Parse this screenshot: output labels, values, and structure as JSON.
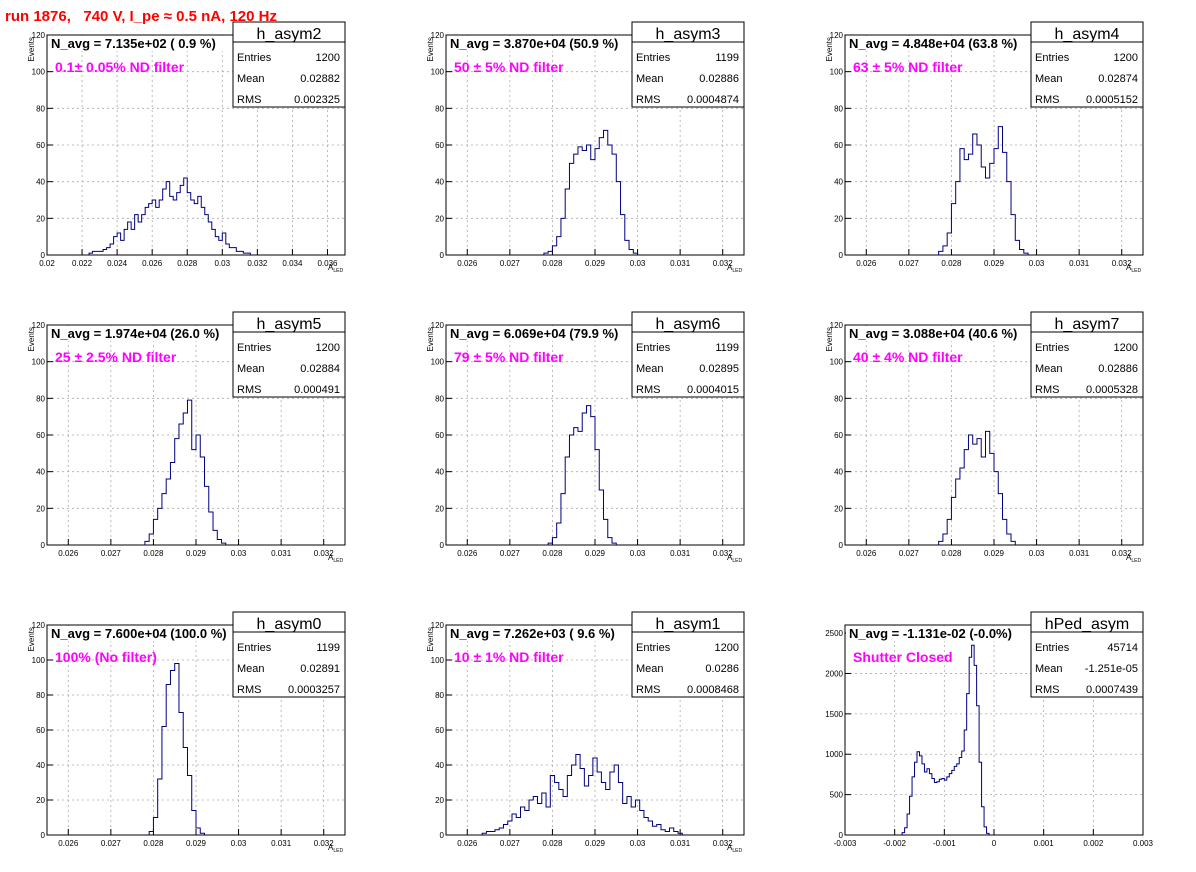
{
  "page_title": "run 1876,   740 V, I_pe ≈ 0.5 nA, 120 Hz",
  "colors": {
    "title": "#ff0000",
    "hist": "#000080",
    "annotation": "#ff00ff",
    "grid": "#aaaaaa"
  },
  "chart_data": [
    {
      "type": "bar",
      "name": "h_asym2",
      "avg_label": "N_avg = 7.135e+02 ( 0.9 %)",
      "annotation": "0.1± 0.05% ND filter",
      "stats": {
        "entries": "1200",
        "mean": "0.02882",
        "rms": "0.002325"
      },
      "ylabel": "Events",
      "xlabel": "A",
      "xlabel_sub": "LED",
      "xlim": [
        0.02,
        0.037
      ],
      "ylim": [
        0,
        120
      ],
      "xticks": [
        0.02,
        0.022,
        0.024,
        0.026,
        0.028,
        0.03,
        0.032,
        0.034,
        0.036
      ],
      "xtick_labels": [
        "0.02",
        "0.022",
        "0.024",
        "0.026",
        "0.028",
        "0.03",
        "0.032",
        "0.034",
        "0.036"
      ],
      "yticks": [
        0,
        20,
        40,
        60,
        80,
        100,
        120
      ],
      "ytick_labels": [
        "0",
        "20",
        "40",
        "60",
        "80",
        "100",
        "120"
      ],
      "bin_start": 0.0224,
      "bin_width": 0.0002,
      "values": [
        1,
        2,
        2,
        2,
        3,
        4,
        6,
        10,
        12,
        8,
        14,
        18,
        14,
        22,
        18,
        22,
        26,
        28,
        30,
        26,
        30,
        36,
        40,
        32,
        30,
        34,
        38,
        42,
        34,
        30,
        28,
        32,
        26,
        22,
        18,
        14,
        10,
        8,
        12,
        6,
        4,
        4,
        2,
        2,
        1,
        1
      ]
    },
    {
      "type": "bar",
      "name": "h_asym3",
      "avg_label": "N_avg = 3.870e+04 (50.9 %)",
      "annotation": "50 ± 5% ND filter",
      "stats": {
        "entries": "1199",
        "mean": "0.02886",
        "rms": "0.0004874"
      },
      "ylabel": "Events",
      "xlabel": "A",
      "xlabel_sub": "LED",
      "xlim": [
        0.0255,
        0.0325
      ],
      "ylim": [
        0,
        120
      ],
      "xticks": [
        0.026,
        0.027,
        0.028,
        0.029,
        0.03,
        0.031,
        0.032
      ],
      "xtick_labels": [
        "0.026",
        "0.027",
        "0.028",
        "0.029",
        "0.03",
        "0.031",
        "0.032"
      ],
      "yticks": [
        0,
        20,
        40,
        60,
        80,
        100,
        120
      ],
      "ytick_labels": [
        "0",
        "20",
        "40",
        "60",
        "80",
        "100",
        "120"
      ],
      "bin_start": 0.0278,
      "bin_width": 0.0001,
      "values": [
        1,
        2,
        5,
        10,
        20,
        36,
        50,
        55,
        59,
        57,
        60,
        52,
        58,
        64,
        68,
        60,
        55,
        40,
        22,
        8,
        3,
        1
      ]
    },
    {
      "type": "bar",
      "name": "h_asym4",
      "avg_label": "N_avg = 4.848e+04 (63.8 %)",
      "annotation": "63 ± 5% ND filter",
      "stats": {
        "entries": "1200",
        "mean": "0.02874",
        "rms": "0.0005152"
      },
      "ylabel": "Events",
      "xlabel": "A",
      "xlabel_sub": "LED",
      "xlim": [
        0.0255,
        0.0325
      ],
      "ylim": [
        0,
        120
      ],
      "xticks": [
        0.026,
        0.027,
        0.028,
        0.029,
        0.03,
        0.031,
        0.032
      ],
      "xtick_labels": [
        "0.026",
        "0.027",
        "0.028",
        "0.029",
        "0.03",
        "0.031",
        "0.032"
      ],
      "yticks": [
        0,
        20,
        40,
        60,
        80,
        100,
        120
      ],
      "ytick_labels": [
        "0",
        "20",
        "40",
        "60",
        "80",
        "100",
        "120"
      ],
      "bin_start": 0.0277,
      "bin_width": 0.0001,
      "values": [
        2,
        5,
        12,
        28,
        40,
        58,
        52,
        55,
        66,
        60,
        48,
        42,
        50,
        58,
        70,
        56,
        40,
        22,
        8,
        3,
        1
      ]
    },
    {
      "type": "bar",
      "name": "h_asym5",
      "avg_label": "N_avg = 1.974e+04 (26.0 %)",
      "annotation": "25 ± 2.5% ND filter",
      "stats": {
        "entries": "1200",
        "mean": "0.02884",
        "rms": "0.000491"
      },
      "ylabel": "Events",
      "xlabel": "A",
      "xlabel_sub": "LED",
      "xlim": [
        0.0255,
        0.0325
      ],
      "ylim": [
        0,
        120
      ],
      "xticks": [
        0.026,
        0.027,
        0.028,
        0.029,
        0.03,
        0.031,
        0.032
      ],
      "xtick_labels": [
        "0.026",
        "0.027",
        "0.028",
        "0.029",
        "0.03",
        "0.031",
        "0.032"
      ],
      "yticks": [
        0,
        20,
        40,
        60,
        80,
        100,
        120
      ],
      "ytick_labels": [
        "0",
        "20",
        "40",
        "60",
        "80",
        "100",
        "120"
      ],
      "bin_start": 0.0278,
      "bin_width": 0.0001,
      "values": [
        2,
        6,
        14,
        20,
        28,
        36,
        45,
        58,
        66,
        72,
        79,
        52,
        60,
        48,
        32,
        18,
        8,
        3,
        1
      ]
    },
    {
      "type": "bar",
      "name": "h_asym6",
      "avg_label": "N_avg = 6.069e+04 (79.9 %)",
      "annotation": "79 ± 5% ND filter",
      "stats": {
        "entries": "1199",
        "mean": "0.02895",
        "rms": "0.0004015"
      },
      "ylabel": "Events",
      "xlabel": "A",
      "xlabel_sub": "LED",
      "xlim": [
        0.0255,
        0.0325
      ],
      "ylim": [
        0,
        120
      ],
      "xticks": [
        0.026,
        0.027,
        0.028,
        0.029,
        0.03,
        0.031,
        0.032
      ],
      "xtick_labels": [
        "0.026",
        "0.027",
        "0.028",
        "0.029",
        "0.03",
        "0.031",
        "0.032"
      ],
      "yticks": [
        0,
        20,
        40,
        60,
        80,
        100,
        120
      ],
      "ytick_labels": [
        "0",
        "20",
        "40",
        "60",
        "80",
        "100",
        "120"
      ],
      "bin_start": 0.0279,
      "bin_width": 0.0001,
      "values": [
        1,
        4,
        12,
        28,
        48,
        60,
        64,
        62,
        72,
        76,
        70,
        52,
        30,
        14,
        4,
        1
      ]
    },
    {
      "type": "bar",
      "name": "h_asym7",
      "avg_label": "N_avg = 3.088e+04 (40.6 %)",
      "annotation": "40 ± 4% ND filter",
      "stats": {
        "entries": "1200",
        "mean": "0.02886",
        "rms": "0.0005328"
      },
      "ylabel": "Events",
      "xlabel": "A",
      "xlabel_sub": "LED",
      "xlim": [
        0.0255,
        0.0325
      ],
      "ylim": [
        0,
        120
      ],
      "xticks": [
        0.026,
        0.027,
        0.028,
        0.029,
        0.03,
        0.031,
        0.032
      ],
      "xtick_labels": [
        "0.026",
        "0.027",
        "0.028",
        "0.029",
        "0.03",
        "0.031",
        "0.032"
      ],
      "yticks": [
        0,
        20,
        40,
        60,
        80,
        100,
        120
      ],
      "ytick_labels": [
        "0",
        "20",
        "40",
        "60",
        "80",
        "100",
        "120"
      ],
      "bin_start": 0.0277,
      "bin_width": 0.0001,
      "values": [
        2,
        6,
        14,
        26,
        36,
        42,
        52,
        60,
        55,
        58,
        48,
        62,
        50,
        40,
        28,
        14,
        6,
        2
      ]
    },
    {
      "type": "bar",
      "name": "h_asym0",
      "avg_label": "N_avg = 7.600e+04 (100.0 %)",
      "annotation": "100% (No filter)",
      "stats": {
        "entries": "1199",
        "mean": "0.02891",
        "rms": "0.0003257"
      },
      "ylabel": "Events",
      "xlabel": "A",
      "xlabel_sub": "LED",
      "xlim": [
        0.0255,
        0.0325
      ],
      "ylim": [
        0,
        120
      ],
      "xticks": [
        0.026,
        0.027,
        0.028,
        0.029,
        0.03,
        0.031,
        0.032
      ],
      "xtick_labels": [
        "0.026",
        "0.027",
        "0.028",
        "0.029",
        "0.03",
        "0.031",
        "0.032"
      ],
      "yticks": [
        0,
        20,
        40,
        60,
        80,
        100,
        120
      ],
      "ytick_labels": [
        "0",
        "20",
        "40",
        "60",
        "80",
        "100",
        "120"
      ],
      "bin_start": 0.0279,
      "bin_width": 0.0001,
      "values": [
        2,
        10,
        32,
        62,
        86,
        94,
        98,
        70,
        50,
        34,
        14,
        4,
        1
      ]
    },
    {
      "type": "bar",
      "name": "h_asym1",
      "avg_label": "N_avg = 7.262e+03 ( 9.6 %)",
      "annotation": "10 ± 1% ND filter",
      "stats": {
        "entries": "1200",
        "mean": "0.0286",
        "rms": "0.0008468"
      },
      "ylabel": "Events",
      "xlabel": "A",
      "xlabel_sub": "LED",
      "xlim": [
        0.0255,
        0.0325
      ],
      "ylim": [
        0,
        120
      ],
      "xticks": [
        0.026,
        0.027,
        0.028,
        0.029,
        0.03,
        0.031,
        0.032
      ],
      "xtick_labels": [
        "0.026",
        "0.027",
        "0.028",
        "0.029",
        "0.03",
        "0.031",
        "0.032"
      ],
      "yticks": [
        0,
        20,
        40,
        60,
        80,
        100,
        120
      ],
      "ytick_labels": [
        "0",
        "20",
        "40",
        "60",
        "80",
        "100",
        "120"
      ],
      "bin_start": 0.02635,
      "bin_width": 0.0001,
      "values": [
        1,
        2,
        2,
        3,
        4,
        6,
        8,
        12,
        10,
        16,
        14,
        20,
        22,
        18,
        24,
        16,
        34,
        30,
        26,
        22,
        34,
        40,
        46,
        38,
        28,
        34,
        44,
        36,
        30,
        26,
        36,
        40,
        30,
        18,
        22,
        16,
        20,
        14,
        10,
        8,
        5,
        6,
        3,
        2,
        4,
        2,
        1
      ]
    },
    {
      "type": "bar",
      "name": "hPed_asym",
      "avg_label": "N_avg = -1.131e-02 (-0.0%)",
      "annotation": "Shutter Closed",
      "stats": {
        "entries": "45714",
        "mean": "-1.251e-05",
        "rms": "0.0007439"
      },
      "ylabel": "",
      "xlabel": "",
      "xlabel_sub": "",
      "xlim": [
        -0.003,
        0.003
      ],
      "ylim": [
        0,
        2600
      ],
      "xticks": [
        -0.003,
        -0.002,
        -0.001,
        0,
        0.001,
        0.002,
        0.003
      ],
      "xtick_labels": [
        "-0.003",
        "-0.002",
        "-0.001",
        "0",
        "0.001",
        "0.002",
        "0.003"
      ],
      "yticks": [
        0,
        500,
        1000,
        1500,
        2000,
        2500
      ],
      "ytick_labels": [
        "0",
        "500",
        "1000",
        "1500",
        "2000",
        "2500"
      ],
      "bin_start": -0.00185,
      "bin_width": 5e-05,
      "values": [
        30,
        90,
        260,
        480,
        720,
        900,
        1030,
        980,
        880,
        780,
        820,
        760,
        700,
        650,
        660,
        690,
        700,
        680,
        720,
        760,
        800,
        850,
        880,
        960,
        1040,
        1300,
        1750,
        2200,
        2350,
        2100,
        1600,
        900,
        350,
        100,
        20
      ]
    }
  ]
}
